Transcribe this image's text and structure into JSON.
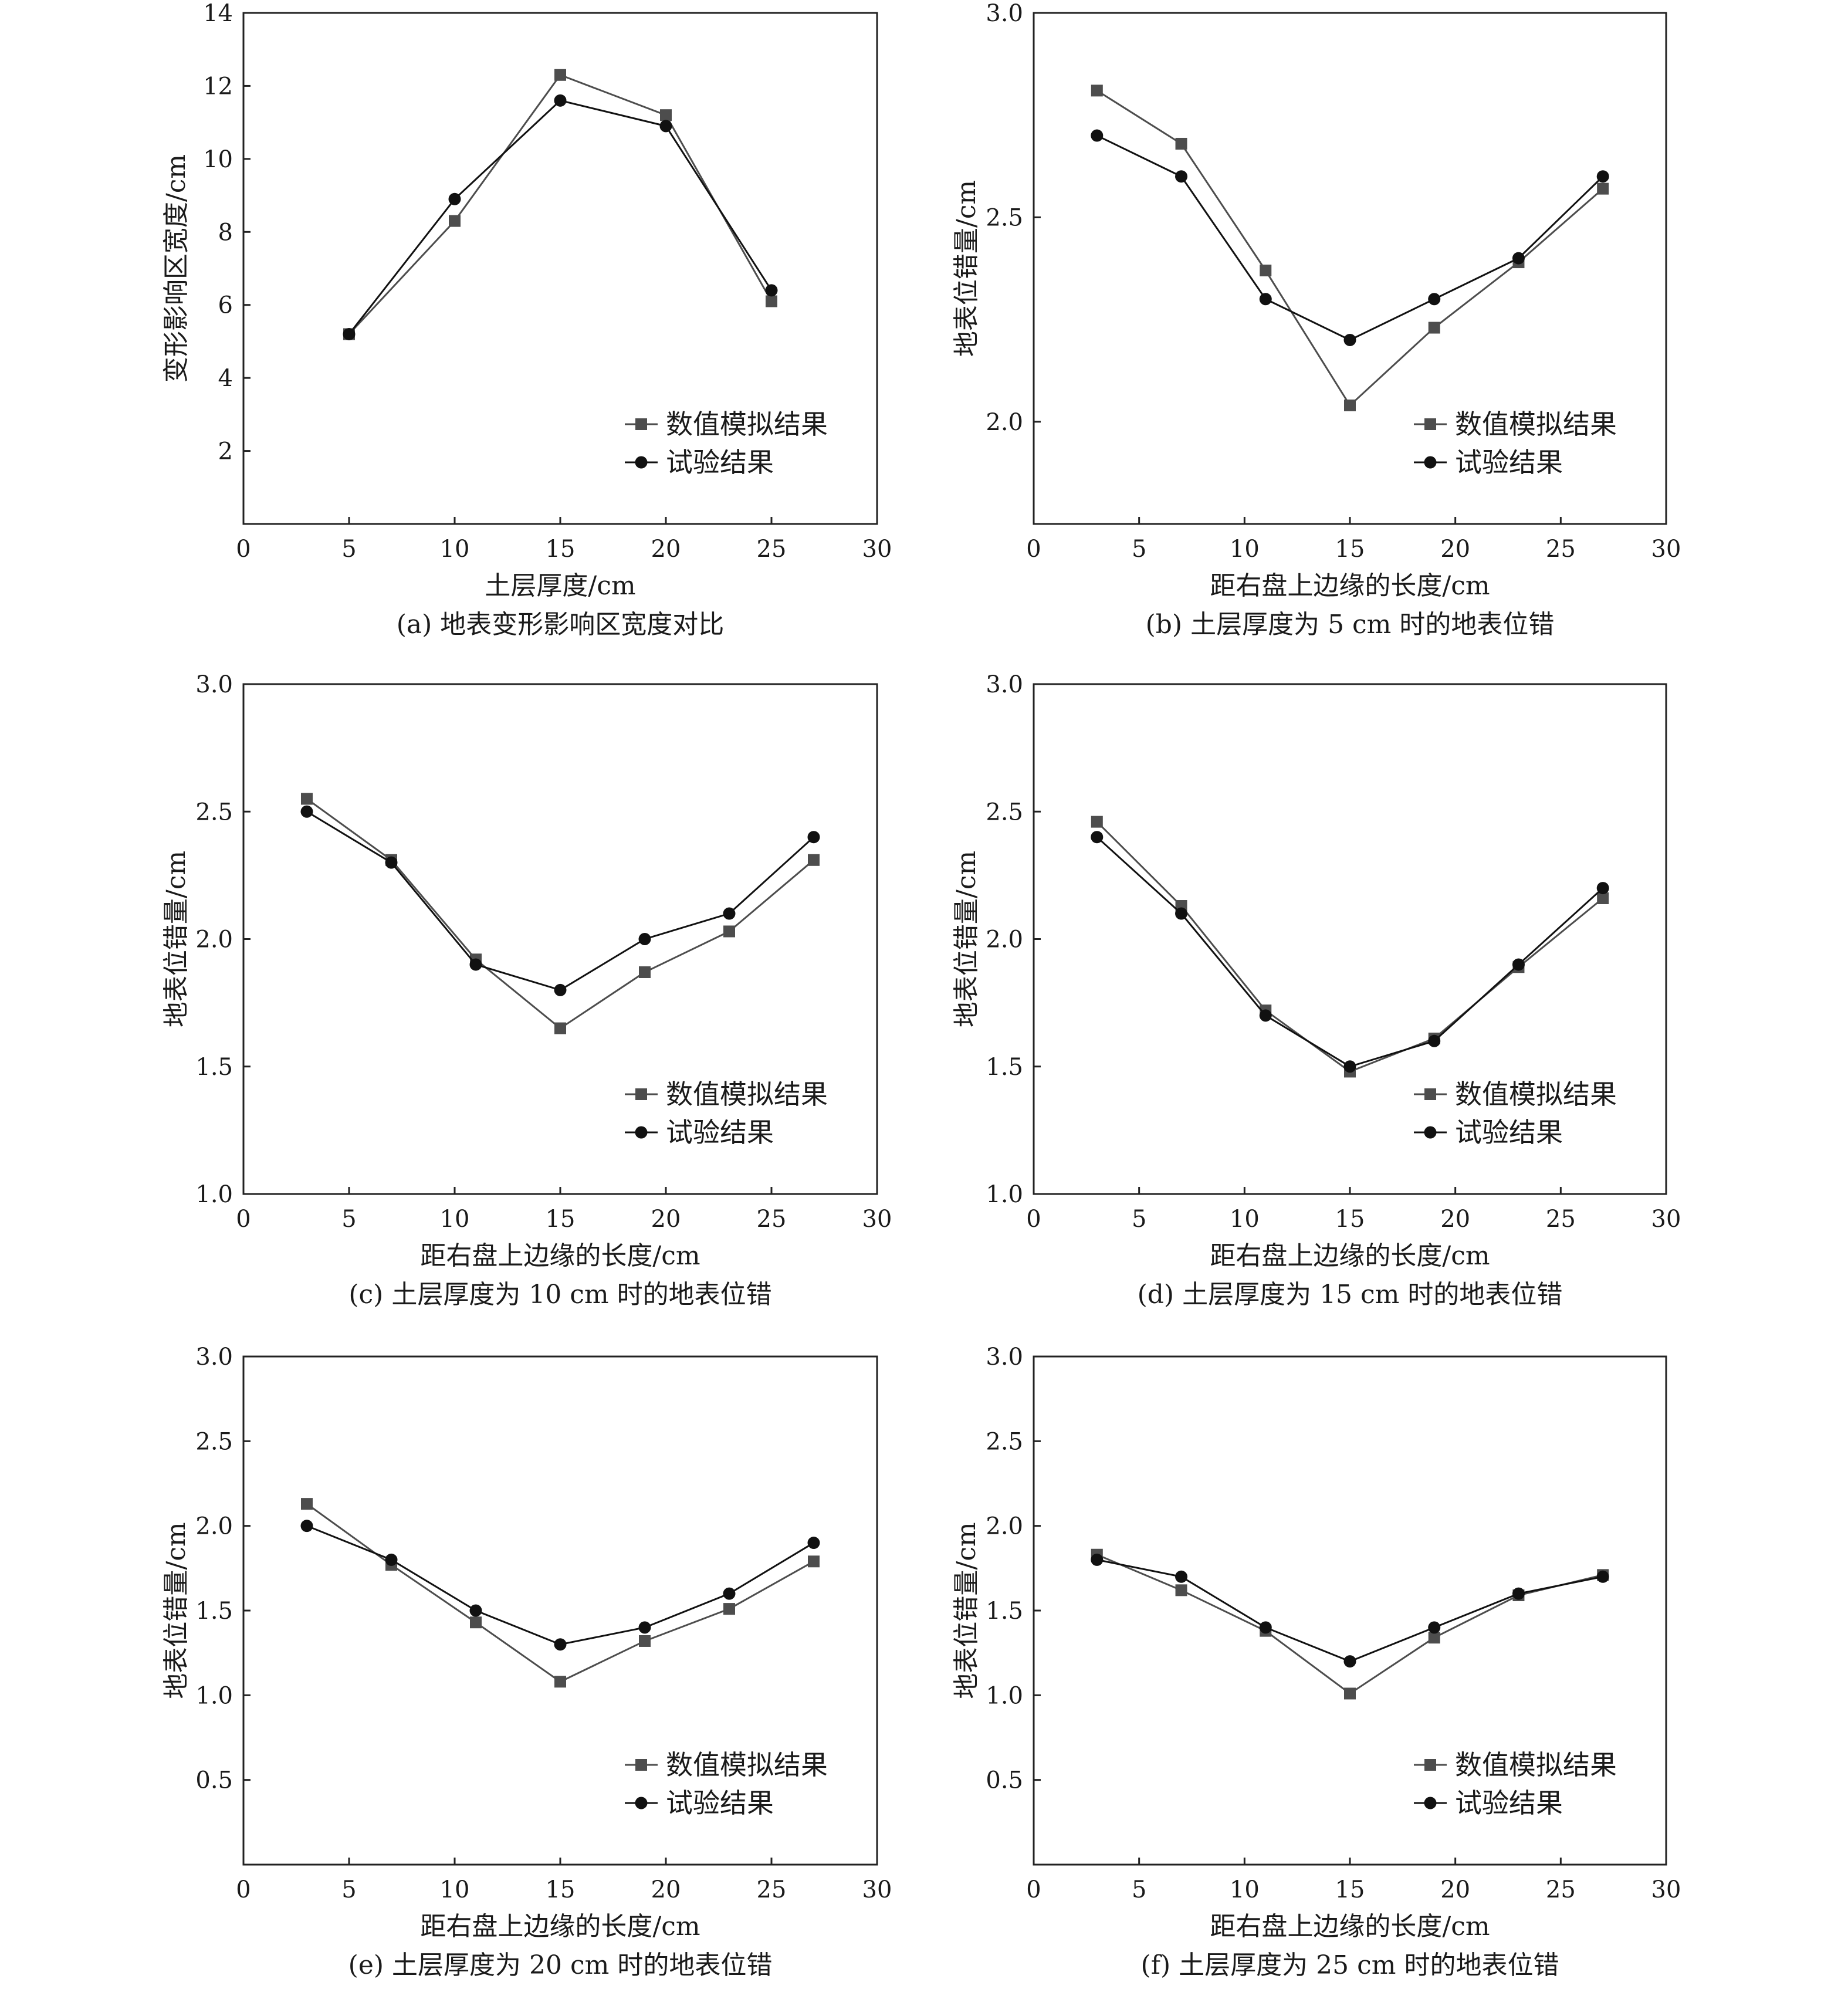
{
  "colors": {
    "numerical": "#4d4d4d",
    "experimental": "#111111",
    "axis": "#222222"
  },
  "legend": {
    "numerical": "数值模拟结果",
    "experimental": "试验结果"
  },
  "chart_data": [
    {
      "type": "line",
      "caption": "(a) 地表变形影响区宽度对比",
      "xlabel": "土层厚度/cm",
      "ylabel": "变形影响区宽度/cm",
      "xlim": [
        0,
        30
      ],
      "ylim": [
        0,
        14
      ],
      "xticks": [
        0,
        5,
        10,
        15,
        20,
        25,
        30
      ],
      "yticks": [
        2,
        4,
        6,
        8,
        10,
        12,
        14
      ],
      "ytick_labels": [
        "2",
        "4",
        "6",
        "8",
        "10",
        "12",
        "14"
      ],
      "x": [
        5,
        10,
        15,
        20,
        25
      ],
      "series": [
        {
          "name": "数值模拟结果",
          "marker": "square",
          "values": [
            5.2,
            8.3,
            12.3,
            11.2,
            6.1
          ]
        },
        {
          "name": "试验结果",
          "marker": "circle",
          "values": [
            5.2,
            8.9,
            11.6,
            10.9,
            6.4
          ]
        }
      ],
      "legend_position": "bottom-right"
    },
    {
      "type": "line",
      "caption": "(b) 土层厚度为 5 cm 时的地表位错",
      "xlabel": "距右盘上边缘的长度/cm",
      "ylabel": "地表位错量/cm",
      "xlim": [
        0,
        30
      ],
      "ylim": [
        1.75,
        3.0
      ],
      "xticks": [
        0,
        5,
        10,
        15,
        20,
        25,
        30
      ],
      "yticks": [
        2.0,
        2.5,
        3.0
      ],
      "ytick_labels": [
        "2.0",
        "2.5",
        "3.0"
      ],
      "x": [
        3,
        7,
        11,
        15,
        19,
        23,
        27
      ],
      "series": [
        {
          "name": "数值模拟结果",
          "marker": "square",
          "values": [
            2.81,
            2.68,
            2.37,
            2.04,
            2.23,
            2.39,
            2.57
          ]
        },
        {
          "name": "试验结果",
          "marker": "circle",
          "values": [
            2.7,
            2.6,
            2.3,
            2.2,
            2.3,
            2.4,
            2.6
          ]
        }
      ],
      "legend_position": "bottom-right"
    },
    {
      "type": "line",
      "caption": "(c) 土层厚度为 10 cm 时的地表位错",
      "xlabel": "距右盘上边缘的长度/cm",
      "ylabel": "地表位错量/cm",
      "xlim": [
        0,
        30
      ],
      "ylim": [
        1.0,
        3.0
      ],
      "xticks": [
        0,
        5,
        10,
        15,
        20,
        25,
        30
      ],
      "yticks": [
        1.0,
        1.5,
        2.0,
        2.5,
        3.0
      ],
      "ytick_labels": [
        "1.0",
        "1.5",
        "2.0",
        "2.5",
        "3.0"
      ],
      "x": [
        3,
        7,
        11,
        15,
        19,
        23,
        27
      ],
      "series": [
        {
          "name": "数值模拟结果",
          "marker": "square",
          "values": [
            2.55,
            2.31,
            1.92,
            1.65,
            1.87,
            2.03,
            2.31
          ]
        },
        {
          "name": "试验结果",
          "marker": "circle",
          "values": [
            2.5,
            2.3,
            1.9,
            1.8,
            2.0,
            2.1,
            2.4
          ]
        }
      ],
      "legend_position": "bottom-right"
    },
    {
      "type": "line",
      "caption": "(d) 土层厚度为 15 cm 时的地表位错",
      "xlabel": "距右盘上边缘的长度/cm",
      "ylabel": "地表位错量/cm",
      "xlim": [
        0,
        30
      ],
      "ylim": [
        1.0,
        3.0
      ],
      "xticks": [
        0,
        5,
        10,
        15,
        20,
        25,
        30
      ],
      "yticks": [
        1.0,
        1.5,
        2.0,
        2.5,
        3.0
      ],
      "ytick_labels": [
        "1.0",
        "1.5",
        "2.0",
        "2.5",
        "3.0"
      ],
      "x": [
        3,
        7,
        11,
        15,
        19,
        23,
        27
      ],
      "series": [
        {
          "name": "数值模拟结果",
          "marker": "square",
          "values": [
            2.46,
            2.13,
            1.72,
            1.48,
            1.61,
            1.89,
            2.16
          ]
        },
        {
          "name": "试验结果",
          "marker": "circle",
          "values": [
            2.4,
            2.1,
            1.7,
            1.5,
            1.6,
            1.9,
            2.2
          ]
        }
      ],
      "legend_position": "bottom-right"
    },
    {
      "type": "line",
      "caption": "(e) 土层厚度为 20 cm 时的地表位错",
      "xlabel": "距右盘上边缘的长度/cm",
      "ylabel": "地表位错量/cm",
      "xlim": [
        0,
        30
      ],
      "ylim": [
        0.0,
        3.0
      ],
      "xticks": [
        0,
        5,
        10,
        15,
        20,
        25,
        30
      ],
      "yticks": [
        0.5,
        1.0,
        1.5,
        2.0,
        2.5,
        3.0
      ],
      "ytick_labels": [
        "0.5",
        "1.0",
        "1.5",
        "2.0",
        "2.5",
        "3.0"
      ],
      "x": [
        3,
        7,
        11,
        15,
        19,
        23,
        27
      ],
      "series": [
        {
          "name": "数值模拟结果",
          "marker": "square",
          "values": [
            2.13,
            1.77,
            1.43,
            1.08,
            1.32,
            1.51,
            1.79
          ]
        },
        {
          "name": "试验结果",
          "marker": "circle",
          "values": [
            2.0,
            1.8,
            1.5,
            1.3,
            1.4,
            1.6,
            1.9
          ]
        }
      ],
      "legend_position": "bottom-right"
    },
    {
      "type": "line",
      "caption": "(f) 土层厚度为 25 cm 时的地表位错",
      "xlabel": "距右盘上边缘的长度/cm",
      "ylabel": "地表位错量/cm",
      "xlim": [
        0,
        30
      ],
      "ylim": [
        0.0,
        3.0
      ],
      "xticks": [
        0,
        5,
        10,
        15,
        20,
        25,
        30
      ],
      "yticks": [
        0.5,
        1.0,
        1.5,
        2.0,
        2.5,
        3.0
      ],
      "ytick_labels": [
        "0.5",
        "1.0",
        "1.5",
        "2.0",
        "2.5",
        "3.0"
      ],
      "x": [
        3,
        7,
        11,
        15,
        19,
        23,
        27
      ],
      "series": [
        {
          "name": "数值模拟结果",
          "marker": "square",
          "values": [
            1.83,
            1.62,
            1.38,
            1.01,
            1.34,
            1.59,
            1.71
          ]
        },
        {
          "name": "试验结果",
          "marker": "circle",
          "values": [
            1.8,
            1.7,
            1.4,
            1.2,
            1.4,
            1.6,
            1.7
          ]
        }
      ],
      "legend_position": "bottom-right"
    }
  ]
}
